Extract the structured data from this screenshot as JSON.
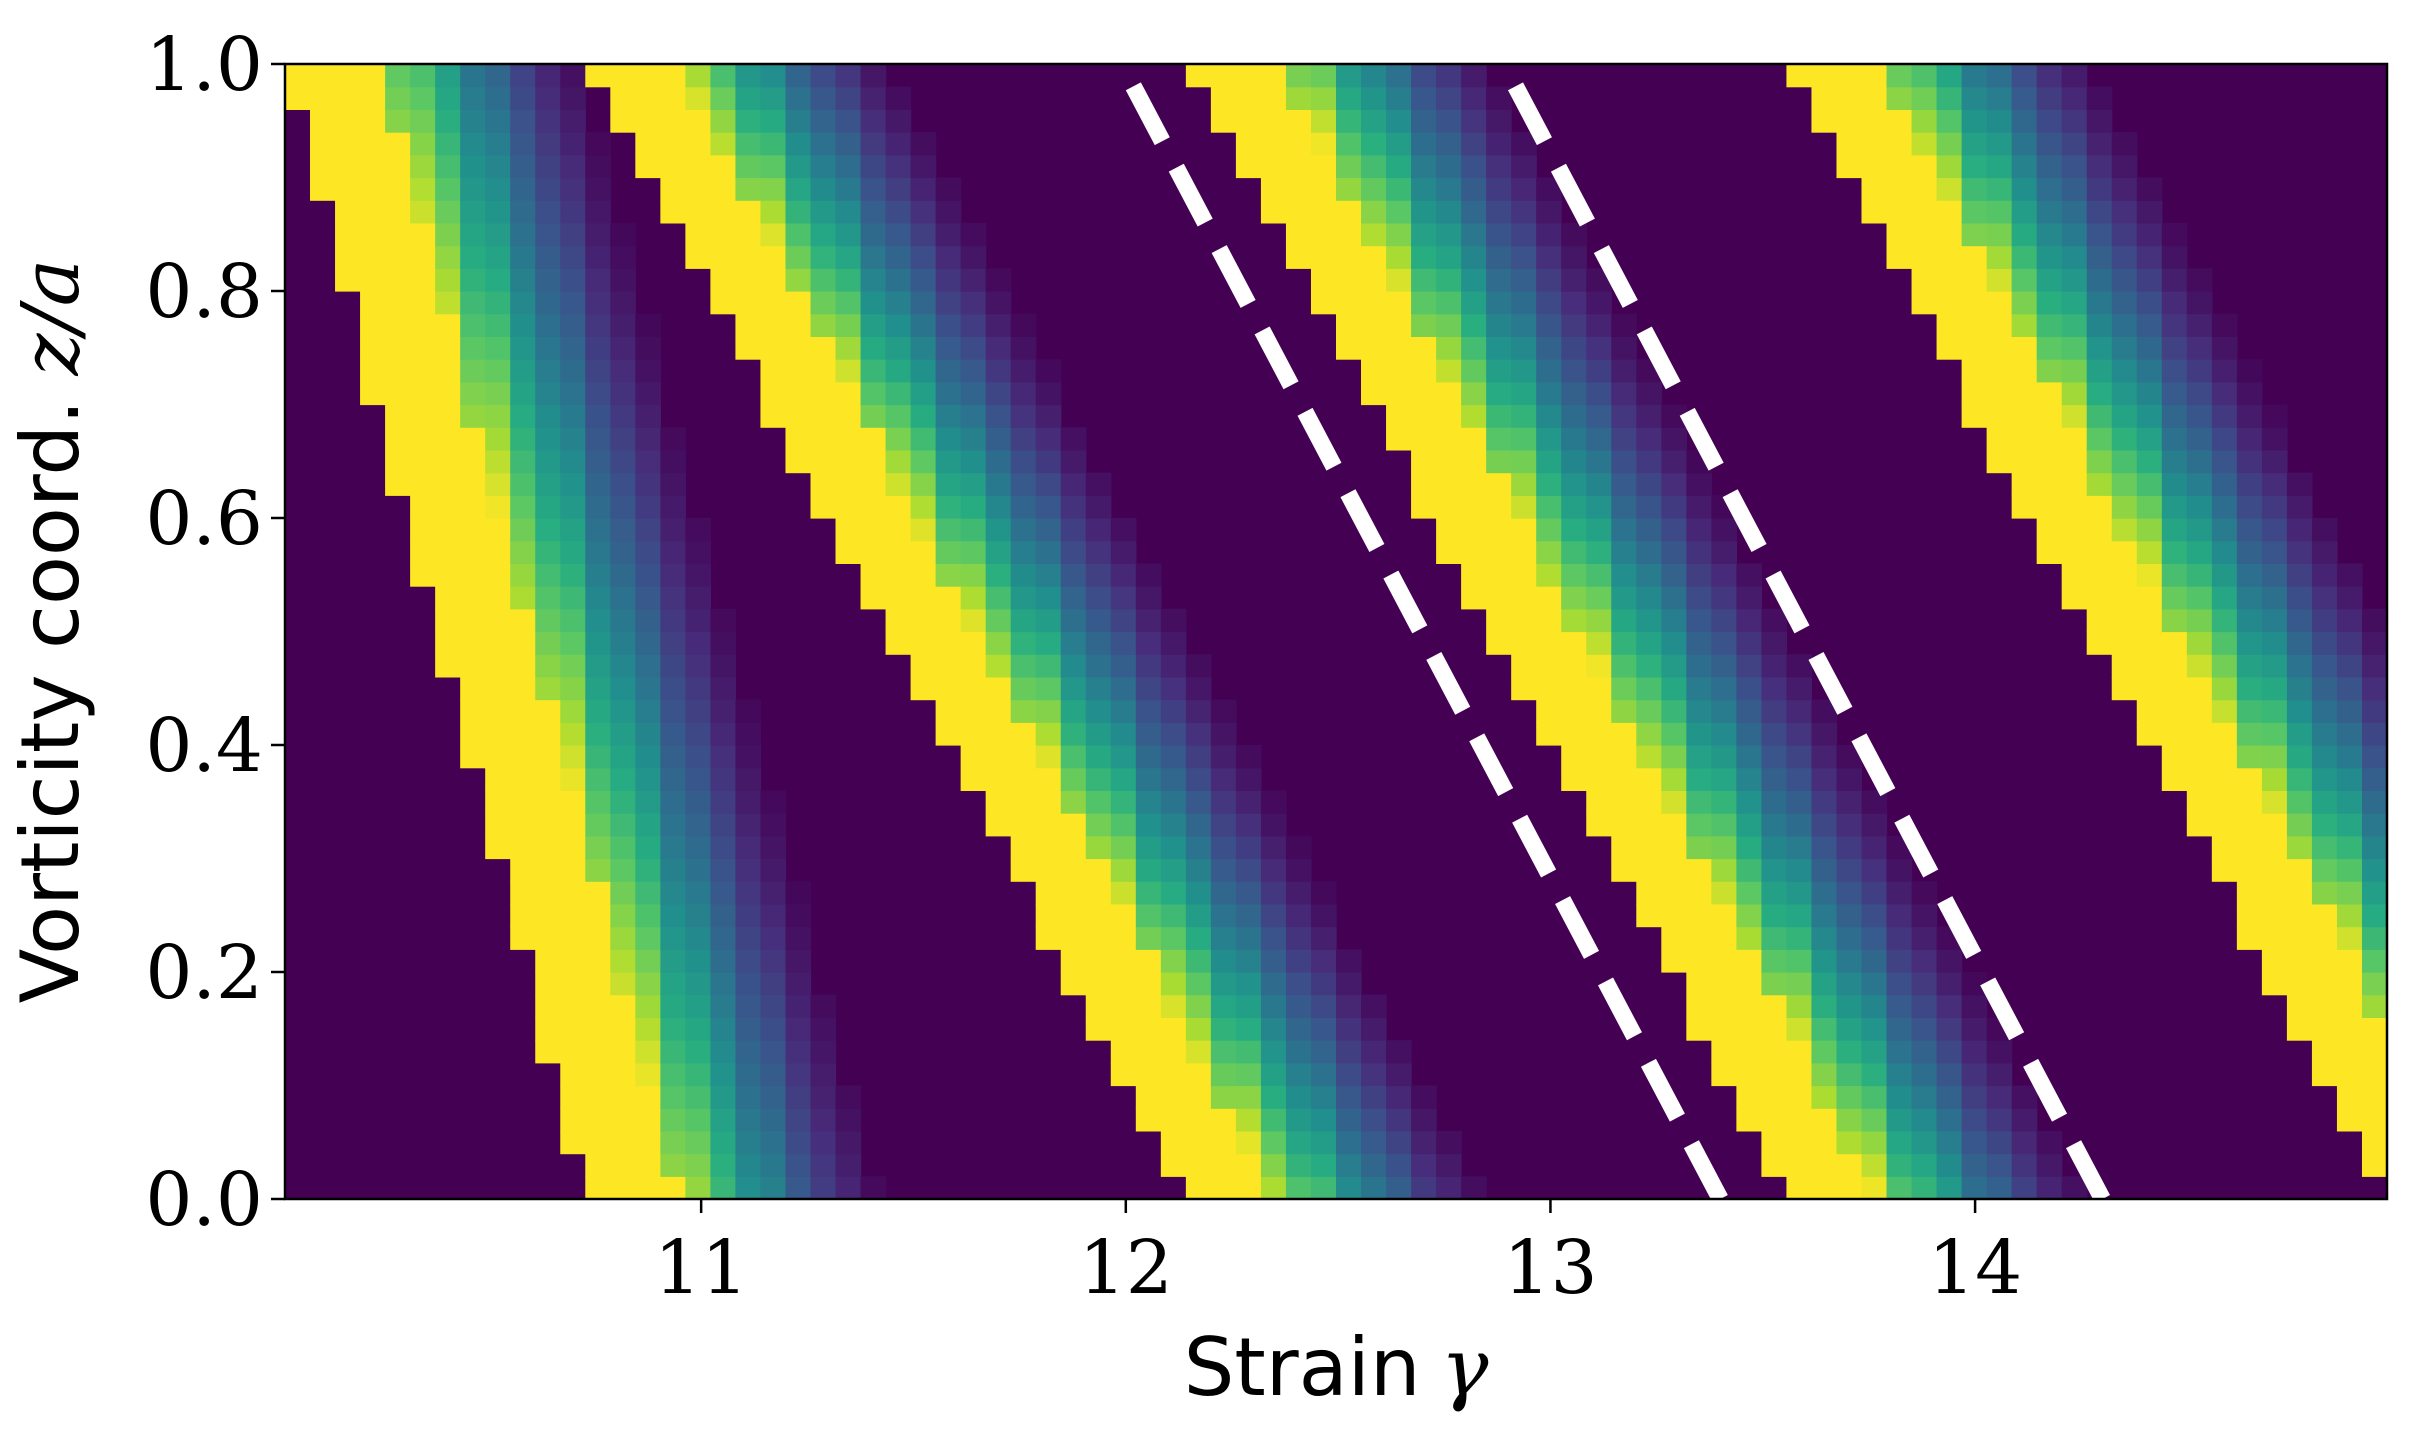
{
  "chart_data": {
    "type": "heatmap",
    "title": "",
    "xlabel": "Strain",
    "xlabel_symbol": "γ",
    "ylabel": "Vorticity coord.",
    "ylabel_symbol": "z/a",
    "xlim": [
      10.02,
      14.97
    ],
    "ylim": [
      0.0,
      1.0
    ],
    "xticks": [
      11,
      12,
      13,
      14
    ],
    "xtick_labels": [
      "11",
      "12",
      "13",
      "14"
    ],
    "yticks": [
      0.0,
      0.2,
      0.4,
      0.6,
      0.8,
      1.0
    ],
    "ytick_labels": [
      "0.0",
      "0.2",
      "0.4",
      "0.6",
      "0.8",
      "1.0"
    ],
    "colormap": "viridis",
    "colors": {
      "background_low": "#440154",
      "band_high": "#fde725",
      "dashed_lines": "#ffffff",
      "axis": "#000000"
    },
    "grid": false,
    "bands": [
      {
        "lower_edge_at_z0": 10.73,
        "lower_edge_at_z1": 10.02,
        "fade_start_at_z0": 10.95,
        "fade_end_at_z0": 11.45
      },
      {
        "lower_edge_at_z0": 12.14,
        "lower_edge_at_z1": 10.73,
        "fade_start_at_z0": 12.35,
        "fade_end_at_z0": 12.88
      },
      {
        "lower_edge_at_z0": 13.56,
        "lower_edge_at_z1": 12.15,
        "fade_start_at_z0": 13.77,
        "fade_end_at_z0": 14.3
      },
      {
        "lower_edge_at_z0": 14.97,
        "lower_edge_at_z1": 13.56,
        "fade_start_at_z0": 15.18,
        "fade_end_at_z0": 15.71
      }
    ],
    "dashed_lines": [
      {
        "x_at_z0": 13.4,
        "x_at_z1": 11.99
      },
      {
        "x_at_z0": 14.3,
        "x_at_z1": 12.89
      }
    ]
  }
}
